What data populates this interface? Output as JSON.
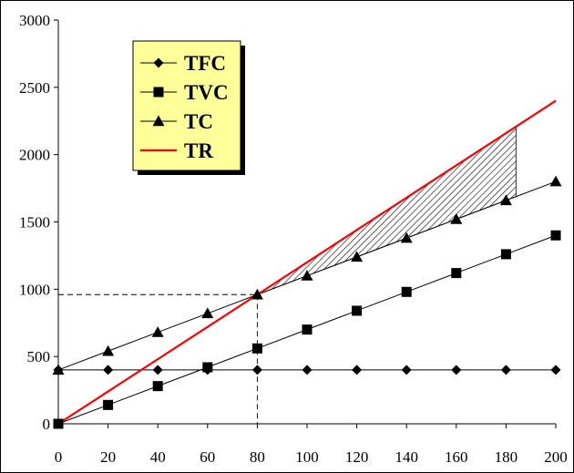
{
  "chart_data": {
    "type": "line",
    "title": "",
    "xlabel": "",
    "ylabel": "",
    "x": [
      0,
      20,
      40,
      60,
      80,
      100,
      120,
      140,
      160,
      180,
      200
    ],
    "xlim": [
      0,
      200
    ],
    "ylim": [
      0,
      3000
    ],
    "x_ticks": [
      "0",
      "20",
      "40",
      "60",
      "80",
      "100",
      "120",
      "140",
      "160",
      "180",
      "200"
    ],
    "y_ticks": [
      "0",
      "500",
      "1000",
      "1500",
      "2000",
      "2500",
      "3000"
    ],
    "grid": false,
    "legend_position": "top-left",
    "series": [
      {
        "name": "TFC",
        "marker": "diamond",
        "color": "#000000",
        "values": [
          400,
          400,
          400,
          400,
          400,
          400,
          400,
          400,
          400,
          400,
          400
        ]
      },
      {
        "name": "TVC",
        "marker": "square",
        "color": "#000000",
        "values": [
          0,
          140,
          280,
          420,
          560,
          700,
          840,
          980,
          1120,
          1260,
          1400
        ]
      },
      {
        "name": "TC",
        "marker": "triangle",
        "color": "#000000",
        "values": [
          400,
          540,
          680,
          820,
          960,
          1100,
          1240,
          1380,
          1520,
          1660,
          1800
        ]
      },
      {
        "name": "TR",
        "marker": "none",
        "color": "#ff0000",
        "values": [
          0,
          240,
          480,
          720,
          960,
          1200,
          1440,
          1680,
          1920,
          2160,
          2400
        ]
      }
    ],
    "break_even": {
      "x": 80,
      "y": 960
    },
    "shaded_profit_region": {
      "x_from": 80,
      "x_to": 184
    },
    "legend_bg": "#ffff99"
  }
}
